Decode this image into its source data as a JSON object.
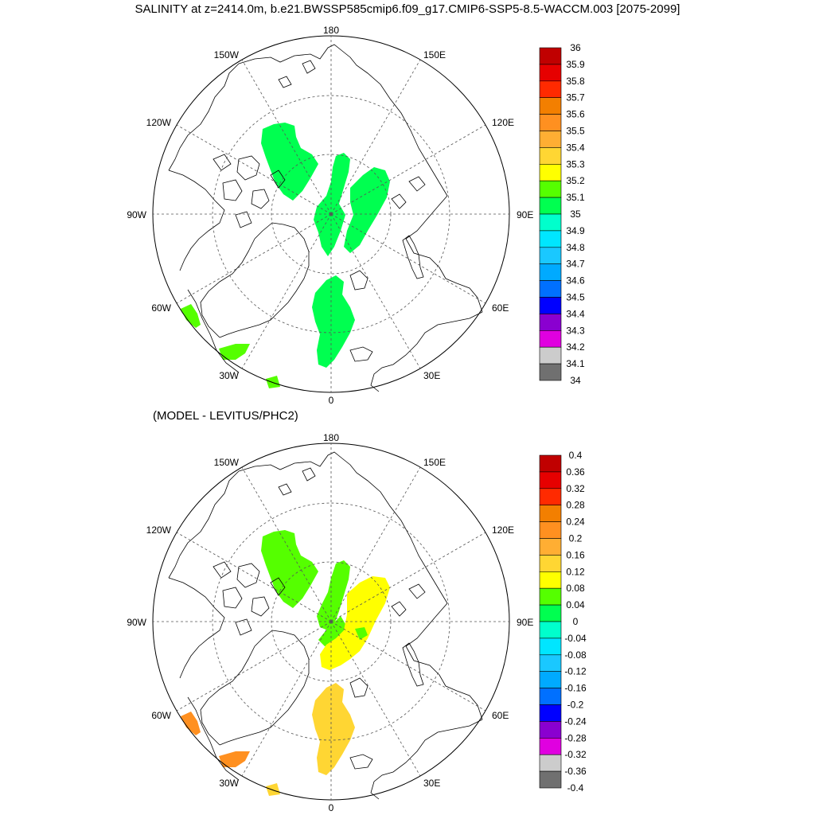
{
  "title": "SALINITY at z=2414.0m, b.e21.BWSSP585cmip6.f09_g17.CMIP6-SSP5-8.5-WACCM.003 [2075-2099]",
  "subtitle": "(MODEL - LEVITUS/PHC2)",
  "lon_labels": {
    "top": "180",
    "bottom": "0",
    "left": "90W",
    "right": "90E",
    "ul1": "150W",
    "ul2": "120W",
    "ur1": "150E",
    "ur2": "120E",
    "ll1": "60W",
    "ll2": "30W",
    "lr1": "60E",
    "lr2": "30E"
  },
  "top_panel": {
    "colorbar_labels": [
      "36",
      "35.9",
      "35.8",
      "35.7",
      "35.6",
      "35.5",
      "35.4",
      "35.3",
      "35.2",
      "35.1",
      "35",
      "34.9",
      "34.8",
      "34.7",
      "34.6",
      "34.5",
      "34.4",
      "34.3",
      "34.2",
      "34.1",
      "34"
    ]
  },
  "bottom_panel": {
    "colorbar_labels": [
      "0.4",
      "0.36",
      "0.32",
      "0.28",
      "0.24",
      "0.2",
      "0.16",
      "0.12",
      "0.08",
      "0.04",
      "0",
      "-0.04",
      "-0.08",
      "-0.12",
      "-0.16",
      "-0.2",
      "-0.24",
      "-0.28",
      "-0.32",
      "-0.36",
      "-0.4"
    ]
  },
  "colorbar_colors": [
    "#c00000",
    "#e60000",
    "#ff2a00",
    "#f37f00",
    "#ff9020",
    "#ffae33",
    "#ffd633",
    "#ffff00",
    "#55ff00",
    "#00ff50",
    "#00ffcc",
    "#00e6ff",
    "#1ac8ff",
    "#00aaff",
    "#0070ff",
    "#0000ff",
    "#8a00d0",
    "#e000e0",
    "#cccccc",
    "#707070"
  ],
  "colors": {
    "top_fill": "#00ff50",
    "top_fill_alt": "#55ff00",
    "bottom_green": "#55ff00",
    "bottom_yellow": "#ffff00",
    "bottom_gold": "#ffd633",
    "bottom_orange": "#ff9020"
  }
}
